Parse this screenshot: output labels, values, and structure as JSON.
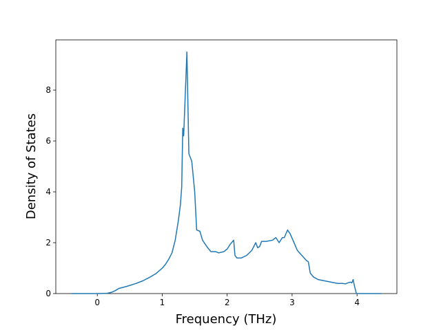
{
  "chart_data": {
    "type": "line",
    "x_label": "Frequency (THz)",
    "y_label": "Density of States",
    "x": [
      -0.4,
      0.0,
      0.15,
      0.22,
      0.28,
      0.33,
      0.45,
      0.6,
      0.7,
      0.8,
      0.9,
      1.0,
      1.05,
      1.1,
      1.15,
      1.2,
      1.25,
      1.28,
      1.3,
      1.316,
      1.33,
      1.38,
      1.41,
      1.455,
      1.5,
      1.53,
      1.58,
      1.62,
      1.7,
      1.75,
      1.82,
      1.87,
      1.95,
      2.0,
      2.05,
      2.1,
      2.12,
      2.15,
      2.22,
      2.3,
      2.38,
      2.44,
      2.47,
      2.5,
      2.53,
      2.6,
      2.7,
      2.75,
      2.8,
      2.85,
      2.88,
      2.93,
      2.97,
      3.03,
      3.08,
      3.15,
      3.22,
      3.25,
      3.28,
      3.33,
      3.4,
      3.5,
      3.6,
      3.7,
      3.78,
      3.82,
      3.86,
      3.9,
      3.92,
      3.94,
      3.96,
      3.99,
      4.1,
      4.37
    ],
    "series": [
      {
        "color": "#1f77b4",
        "values": [
          0,
          0,
          0.01,
          0.05,
          0.12,
          0.2,
          0.28,
          0.4,
          0.5,
          0.63,
          0.78,
          1.0,
          1.15,
          1.35,
          1.6,
          2.1,
          2.9,
          3.5,
          4.2,
          6.5,
          6.2,
          9.5,
          5.5,
          5.2,
          4.0,
          2.5,
          2.45,
          2.1,
          1.8,
          1.65,
          1.65,
          1.6,
          1.65,
          1.75,
          1.95,
          2.1,
          1.5,
          1.4,
          1.4,
          1.5,
          1.7,
          2.0,
          1.8,
          1.85,
          2.05,
          2.05,
          2.1,
          2.2,
          2.0,
          2.2,
          2.2,
          2.5,
          2.35,
          2.0,
          1.7,
          1.5,
          1.3,
          1.25,
          0.8,
          0.65,
          0.55,
          0.5,
          0.45,
          0.4,
          0.4,
          0.38,
          0.42,
          0.45,
          0.42,
          0.55,
          0.3,
          0,
          0,
          0
        ]
      }
    ],
    "xlim": [
      -0.639,
      4.614
    ],
    "xticks": [
      0,
      1,
      2,
      3,
      4
    ],
    "ylim": [
      0,
      9.975
    ],
    "yticks": [
      0,
      2,
      4,
      6,
      8
    ],
    "grid": false
  }
}
